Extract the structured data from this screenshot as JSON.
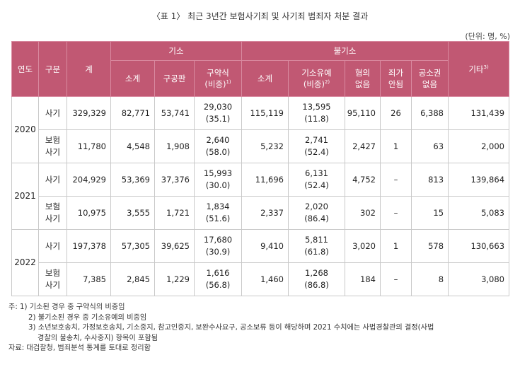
{
  "title": "〈표 1〉 최근 3년간 보험사기죄 및 사기죄 범죄자 처분 결과",
  "unit": "(단위: 명, %)",
  "header": {
    "year": "연도",
    "category": "구분",
    "total": "계",
    "prosecution": "기소",
    "non_prosecution": "불기소",
    "other": "기타",
    "other_note": "3)",
    "sub": {
      "subtotal1": "소계",
      "formal_trial": "구공판",
      "summary_line1": "구약식",
      "summary_line2": "(비중)",
      "summary_note": "1)",
      "subtotal2": "소계",
      "suspended_line1": "기소유예",
      "suspended_line2": "(비중)",
      "suspended_note": "2)",
      "no_suspicion_line1": "혐의",
      "no_suspicion_line2": "없음",
      "no_crime_line1": "죄가",
      "no_crime_line2": "안됨",
      "no_right_line1": "공소권",
      "no_right_line2": "없음"
    }
  },
  "rows": [
    {
      "year": "2020",
      "fraud": {
        "cat": "사기",
        "total": "329,329",
        "sub1": "82,771",
        "formal": "53,741",
        "summary": "29,030",
        "summary_pct": "(35.1)",
        "sub2": "115,119",
        "suspended": "13,595",
        "suspended_pct": "(11.8)",
        "no_suspicion": "95,110",
        "no_crime": "26",
        "no_right": "6,388",
        "other": "131,439"
      },
      "insurance": {
        "cat1": "보험",
        "cat2": "사기",
        "total": "11,780",
        "sub1": "4,548",
        "formal": "1,908",
        "summary": "2,640",
        "summary_pct": "(58.0)",
        "sub2": "5,232",
        "suspended": "2,741",
        "suspended_pct": "(52.4)",
        "no_suspicion": "2,427",
        "no_crime": "1",
        "no_right": "63",
        "other": "2,000"
      }
    },
    {
      "year": "2021",
      "fraud": {
        "cat": "사기",
        "total": "204,929",
        "sub1": "53,369",
        "formal": "37,376",
        "summary": "15,993",
        "summary_pct": "(30.0)",
        "sub2": "11,696",
        "suspended": "6,131",
        "suspended_pct": "(52.4)",
        "no_suspicion": "4,752",
        "no_crime": "–",
        "no_right": "813",
        "other": "139,864"
      },
      "insurance": {
        "cat1": "보험",
        "cat2": "사기",
        "total": "10,975",
        "sub1": "3,555",
        "formal": "1,721",
        "summary": "1,834",
        "summary_pct": "(51.6)",
        "sub2": "2,337",
        "suspended": "2,020",
        "suspended_pct": "(86.4)",
        "no_suspicion": "302",
        "no_crime": "–",
        "no_right": "15",
        "other": "5,083"
      }
    },
    {
      "year": "2022",
      "fraud": {
        "cat": "사기",
        "total": "197,378",
        "sub1": "57,305",
        "formal": "39,625",
        "summary": "17,680",
        "summary_pct": "(30.9)",
        "sub2": "9,410",
        "suspended": "5,811",
        "suspended_pct": "(61.8)",
        "no_suspicion": "3,020",
        "no_crime": "1",
        "no_right": "578",
        "other": "130,663"
      },
      "insurance": {
        "cat1": "보험",
        "cat2": "사기",
        "total": "7,385",
        "sub1": "2,845",
        "formal": "1,229",
        "summary": "1,616",
        "summary_pct": "(56.8)",
        "sub2": "1,460",
        "suspended": "1,268",
        "suspended_pct": "(86.8)",
        "no_suspicion": "184",
        "no_crime": "–",
        "no_right": "8",
        "other": "3,080"
      }
    }
  ],
  "notes": {
    "n1": "주: 1) 기소된 경우 중 구약식의 비중임",
    "n2": "2) 불기소된 경우 중 기소유예의 비중임",
    "n3a": "3) 소년보호송치, 가정보호송치, 기소중지, 참고인중지, 보완수사요구, 공소보류 등이 해당하며 2021 수치에는 사법경찰관의 결정(사법",
    "n3b": "경찰의 불송치, 수사중지) 항목이 포함됨",
    "source": "자료: 대검찰청, 범죄분석 통계를 토대로 정리함"
  }
}
